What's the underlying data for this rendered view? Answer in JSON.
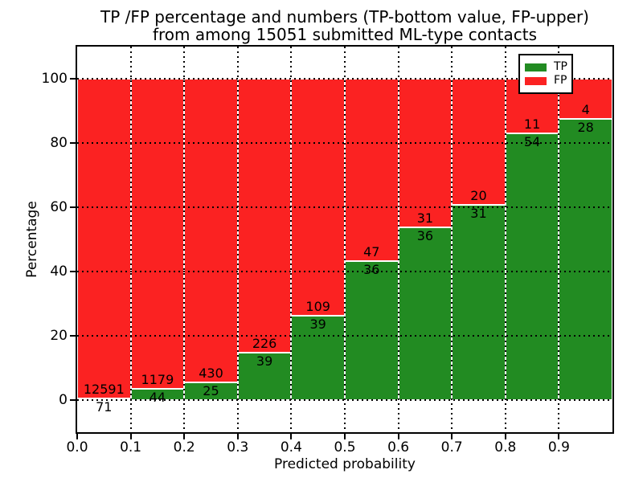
{
  "title": {
    "line1": "TP /FP percentage and numbers (TP-bottom value, FP-upper)",
    "line2": "from among 15051 submitted ML-type contacts"
  },
  "chart_data": {
    "type": "bar",
    "subtype": "stacked-100-percent-histogram",
    "title": "TP /FP percentage and numbers (TP-bottom value, FP-upper) from among 15051 submitted ML-type contacts",
    "xlabel": "Predicted probability",
    "ylabel": "Percentage",
    "total_submitted": 15051,
    "bin_starts": [
      0.0,
      0.1,
      0.2,
      0.3,
      0.4,
      0.5,
      0.6,
      0.7,
      0.8,
      0.9
    ],
    "bin_width": 0.1,
    "series": [
      {
        "name": "TP",
        "color": "#228b22",
        "counts": [
          71,
          44,
          25,
          39,
          39,
          36,
          36,
          31,
          54,
          28
        ]
      },
      {
        "name": "FP",
        "color": "#fb2222",
        "counts": [
          12591,
          1179,
          430,
          226,
          109,
          47,
          31,
          20,
          11,
          4
        ]
      }
    ],
    "tp_percent_by_bin": [
      0.56,
      3.6,
      5.49,
      14.72,
      26.35,
      43.37,
      53.73,
      60.78,
      83.08,
      87.5
    ],
    "bar_total_percent": 100,
    "xticks": [
      "0.0",
      "0.1",
      "0.2",
      "0.3",
      "0.4",
      "0.5",
      "0.6",
      "0.7",
      "0.8",
      "0.9"
    ],
    "yticks": [
      0,
      20,
      40,
      60,
      80,
      100
    ],
    "xlim": [
      0.0,
      1.0
    ],
    "ylim": [
      -10,
      110
    ],
    "grid": "dotted",
    "legend": {
      "position": "upper-right",
      "entries": [
        {
          "label": "TP",
          "color": "#228b22"
        },
        {
          "label": "FP",
          "color": "#fb2222"
        }
      ]
    }
  },
  "colors": {
    "tp_green": "#228b22",
    "fp_red": "#fb2222",
    "background": "#ffffff",
    "text": "#000000"
  }
}
